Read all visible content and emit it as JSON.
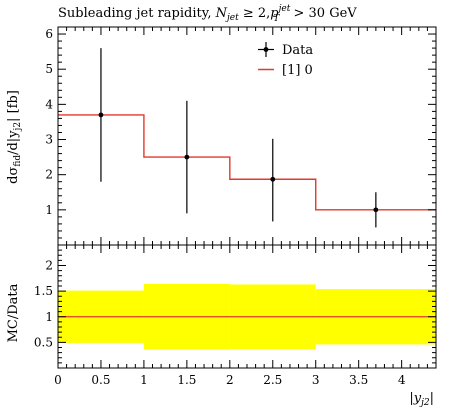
{
  "title_main": "Subleading jet rapidity, ",
  "title_math": "N",
  "title_sub1": "jet",
  "title_mid": " ≥ 2,",
  "title_p": "p",
  "title_sup": "jet",
  "title_sub2": "T",
  "title_end": " > 30 GeV",
  "ylabel_main": "dσ",
  "ylabel_sub": "fid",
  "ylabel_rest": "/d|y",
  "ylabel_sub2": "j2",
  "ylabel_end": "| [fb]",
  "ylabel_ratio": "MC/Data",
  "xlabel": "|y",
  "xlabel_sub": "j2",
  "xlabel_end": "|",
  "legend": {
    "data_label": "Data",
    "mc_label": "[1] 0"
  },
  "colors": {
    "mc": "#e3382b",
    "band": "#ffff00",
    "data": "#000000"
  },
  "chart_data": [
    {
      "type": "step",
      "panel": "main",
      "xlim": [
        0,
        4.4
      ],
      "ylim": [
        0,
        6.2
      ],
      "yticks": [
        "1",
        "2",
        "3",
        "4",
        "5",
        "6"
      ],
      "ytick_values": [
        1,
        2,
        3,
        4,
        5,
        6
      ],
      "series": [
        {
          "name": "Data",
          "kind": "points",
          "x": [
            0.5,
            1.5,
            2.5,
            3.7
          ],
          "y": [
            3.7,
            2.5,
            1.87,
            1.0
          ],
          "err_low": [
            1.9,
            1.6,
            1.2,
            0.5
          ],
          "err_high": [
            1.9,
            1.6,
            1.15,
            0.5
          ]
        },
        {
          "name": "[1] 0",
          "kind": "histogram",
          "edges": [
            0,
            1,
            2,
            3,
            4.4
          ],
          "values": [
            3.7,
            2.5,
            1.87,
            1.0
          ]
        }
      ]
    },
    {
      "type": "band",
      "panel": "ratio",
      "xlim": [
        0,
        4.4
      ],
      "ylim": [
        0,
        2.4
      ],
      "yticks": [
        "0.5",
        "1",
        "1.5",
        "2"
      ],
      "ytick_values": [
        0.5,
        1,
        1.5,
        2
      ],
      "xticks": [
        "0",
        "0.5",
        "1",
        "1.5",
        "2",
        "2.5",
        "3",
        "3.5",
        "4"
      ],
      "xtick_values": [
        0,
        0.5,
        1,
        1.5,
        2,
        2.5,
        3,
        3.5,
        4
      ],
      "edges": [
        0,
        1,
        2,
        3,
        4.4
      ],
      "band_low": [
        0.49,
        0.36,
        0.37,
        0.46
      ],
      "band_high": [
        1.51,
        1.64,
        1.63,
        1.54
      ],
      "ratio": 1.0
    }
  ]
}
